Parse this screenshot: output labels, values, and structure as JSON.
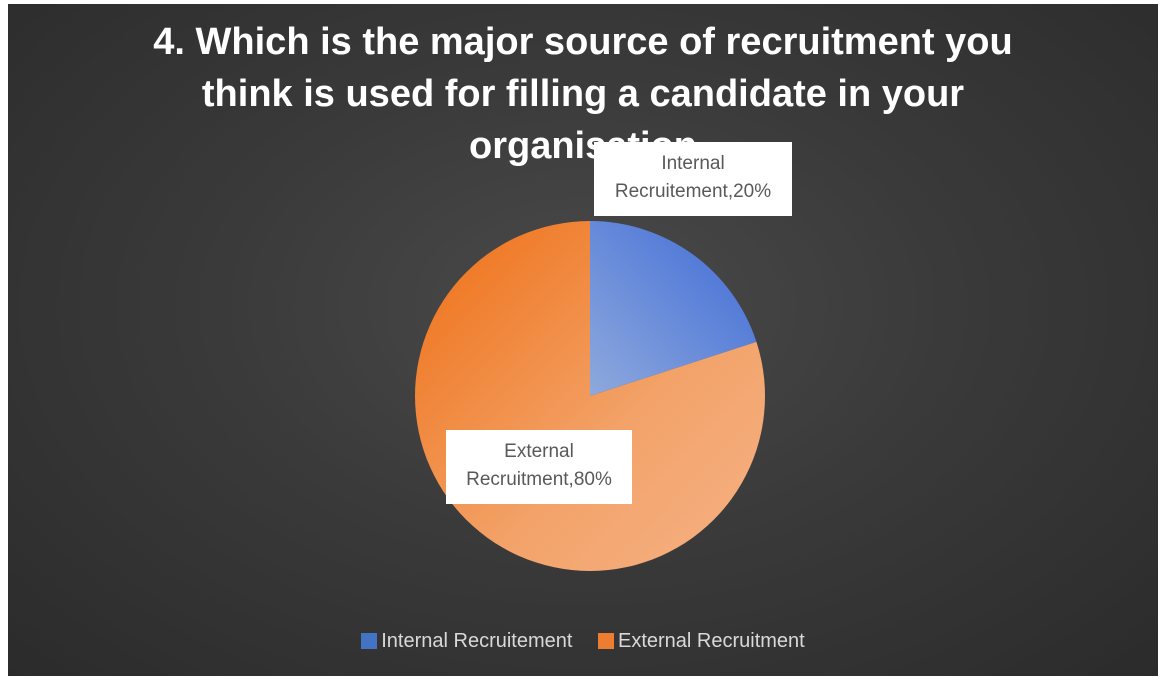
{
  "chart_data": {
    "type": "pie",
    "title": "4. Which is the major source of recruitment you think is used for filling a candidate in your organisation",
    "categories": [
      "Internal Recruitement",
      "External Recruitment"
    ],
    "values": [
      20,
      80
    ],
    "data_labels": [
      {
        "name": "Internal",
        "name2": "Recruitement,20%"
      },
      {
        "name": "External",
        "name2": "Recruitment,80%"
      }
    ],
    "colors": [
      "#4472c4",
      "#ed7d31"
    ],
    "legend": [
      "Internal Recruitement",
      "External Recruitment"
    ],
    "legend_position": "bottom",
    "background": "#3a3a3a"
  }
}
